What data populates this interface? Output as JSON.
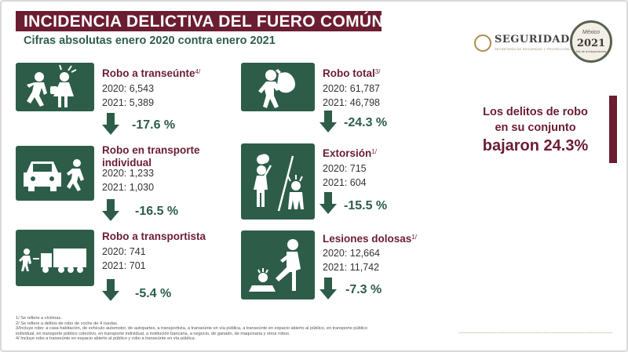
{
  "header": {
    "title": "INCIDENCIA DELICTIVA DEL FUERO COMÚN",
    "subtitle": "Cifras absolutas enero 2020 contra enero 2021"
  },
  "logos": {
    "seguridad_main": "SEGURIDAD",
    "seguridad_sub": "SECRETARÍA DE SEGURIDAD Y PROTECCIÓN CIUDADANA",
    "year_logo_mexico": "México",
    "year_logo_year": "2021",
    "year_logo_sub": "Año de la Independencia"
  },
  "colors": {
    "accent_burgundy": "#6b1d32",
    "accent_green": "#2d5d49"
  },
  "crimes": [
    {
      "name": "Robo a transeúnte",
      "note": "4/",
      "v2020": "2020: 6,543",
      "v2021": "2021: 5,389",
      "change": "-17.6 %",
      "icon": "pedestrian-robbery-icon"
    },
    {
      "name": "Robo en transporte individual",
      "note": "",
      "v2020": "2020: 1,233",
      "v2021": "2021: 1,030",
      "change": "-16.5 %",
      "icon": "car-robbery-icon"
    },
    {
      "name": "Robo a transportista",
      "note": "",
      "v2020": "2020: 741",
      "v2021": "2021: 701",
      "change": "-5.4 %",
      "icon": "truck-robbery-icon"
    },
    {
      "name": "Robo total",
      "note": "3/",
      "v2020": "2020: 61,787",
      "v2021": "2021: 46,798",
      "change": "-24.3 %",
      "icon": "thief-icon"
    },
    {
      "name": "Extorsión",
      "note": "1/",
      "v2020": "2020: 715",
      "v2021": "2021: 604",
      "change": "-15.5 %",
      "icon": "extortion-icon"
    },
    {
      "name": "Lesiones dolosas",
      "note": "1/",
      "v2020": "2020: 12,664",
      "v2021": "2021: 11,742",
      "change": "-7.3 %",
      "icon": "assault-icon"
    }
  ],
  "highlight": {
    "line1": "Los delitos de robo",
    "line2": "en su conjunto",
    "line3": "bajaron 24.3%"
  },
  "notes": [
    "1/ Se refiere a víctimas.",
    "2/ Se refiere a delitos de robo de coche de 4 ruedas.",
    "3/Incluye robo: a casa habitación, de vehículo automotor, de autopartes, a transportista, a transeúnte en vía pública, a transeúnte en espacio abierto al público, en transporte público",
    "individual, en transporte público colectivo, en transporte individual, a institución bancaria, a negocio, de ganado, de maquinaria y otros robos.",
    "4/ Incluye robo a transeúnte en espacio abierto al público y robo a transeúnte en vía pública."
  ]
}
